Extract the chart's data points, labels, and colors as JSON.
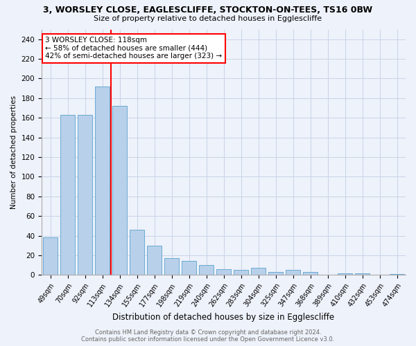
{
  "title": "3, WORSLEY CLOSE, EAGLESCLIFFE, STOCKTON-ON-TEES, TS16 0BW",
  "subtitle": "Size of property relative to detached houses in Egglescliffe",
  "xlabel": "Distribution of detached houses by size in Egglescliffe",
  "ylabel": "Number of detached properties",
  "bar_labels": [
    "49sqm",
    "70sqm",
    "92sqm",
    "113sqm",
    "134sqm",
    "155sqm",
    "177sqm",
    "198sqm",
    "219sqm",
    "240sqm",
    "262sqm",
    "283sqm",
    "304sqm",
    "325sqm",
    "347sqm",
    "368sqm",
    "389sqm",
    "410sqm",
    "432sqm",
    "453sqm",
    "474sqm"
  ],
  "bar_values": [
    38,
    163,
    163,
    192,
    172,
    46,
    30,
    17,
    14,
    10,
    6,
    5,
    7,
    3,
    5,
    3,
    0,
    2,
    2,
    0,
    1
  ],
  "bar_color": "#b8d0ea",
  "bar_edgecolor": "#6aaad4",
  "red_line_x": 3.5,
  "annotation_text": "3 WORSLEY CLOSE: 118sqm\n← 58% of detached houses are smaller (444)\n42% of semi-detached houses are larger (323) →",
  "annotation_box_color": "white",
  "annotation_box_edgecolor": "red",
  "footer_line1": "Contains HM Land Registry data © Crown copyright and database right 2024.",
  "footer_line2": "Contains public sector information licensed under the Open Government Licence v3.0.",
  "ylim": [
    0,
    250
  ],
  "yticks": [
    0,
    20,
    40,
    60,
    80,
    100,
    120,
    140,
    160,
    180,
    200,
    220,
    240
  ],
  "fig_width": 6.0,
  "fig_height": 5.0,
  "dpi": 100,
  "grid_color": "#c8d4e8",
  "background_color": "#eef2fa"
}
